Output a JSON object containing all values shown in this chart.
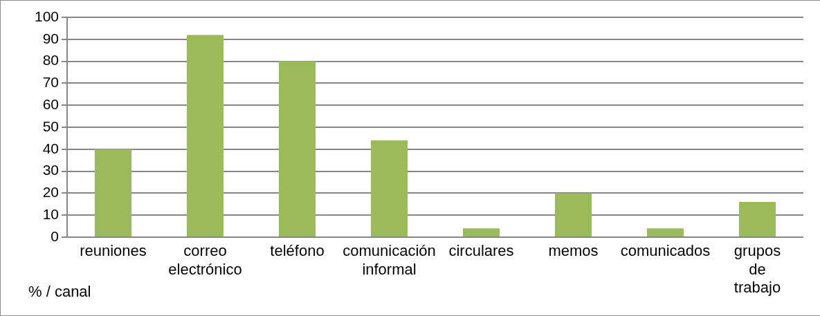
{
  "chart_data": {
    "type": "bar",
    "categories": [
      "reuniones",
      "correo electrónico",
      "teléfono",
      "comunicación informal",
      "circulares",
      "memos",
      "comunicados",
      "grupos de trabajo"
    ],
    "values": [
      40,
      92,
      80,
      44,
      4,
      20,
      4,
      16
    ],
    "color": "#9bbb59",
    "ylim": [
      0,
      100
    ],
    "yticks": [
      0,
      10,
      20,
      30,
      40,
      50,
      60,
      70,
      80,
      90,
      100
    ],
    "grid": "y",
    "legend": false,
    "annotations": [
      "% / canal"
    ]
  }
}
